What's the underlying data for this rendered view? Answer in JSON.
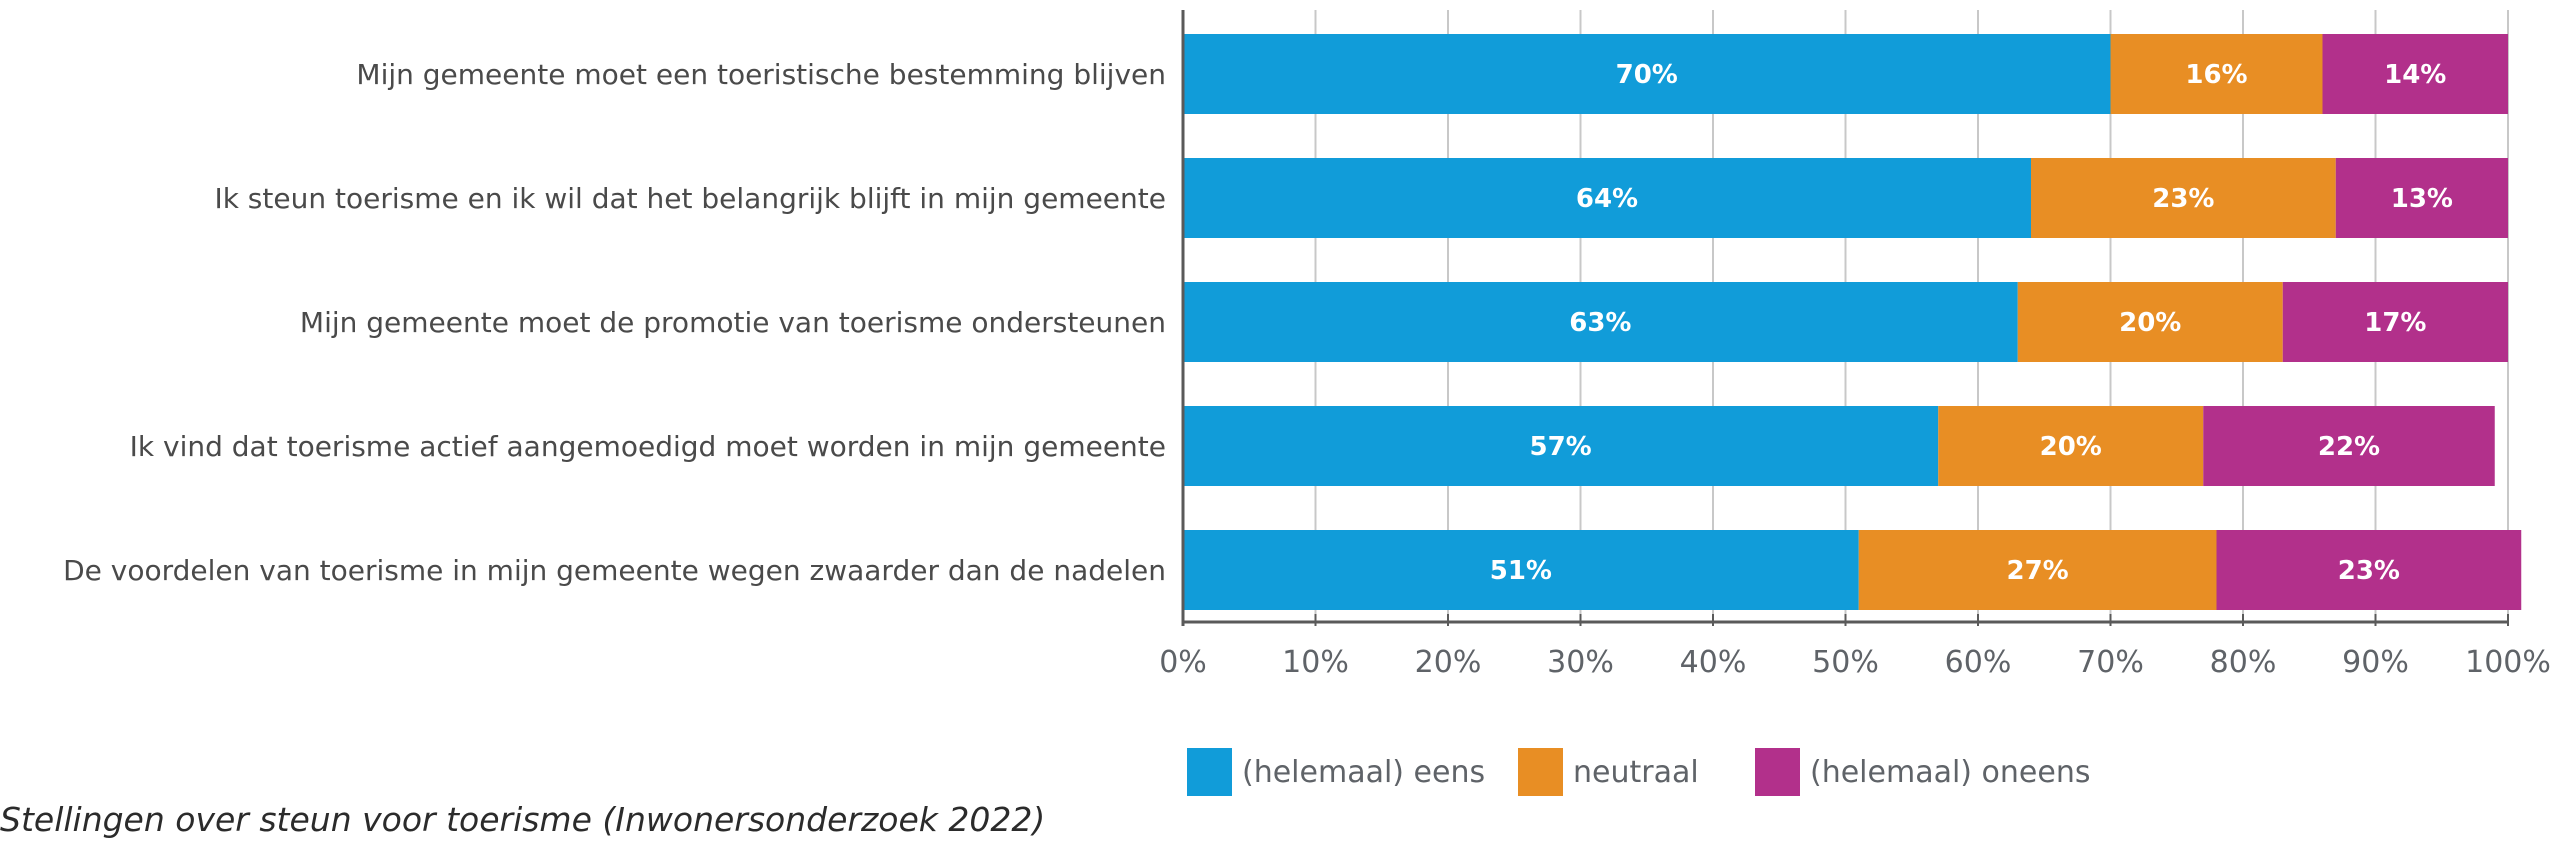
{
  "caption": "Stellingen over steun voor toerisme (Inwonersonderzoek 2022)",
  "chart_data": {
    "type": "bar",
    "orientation": "horizontal",
    "stacked": true,
    "categories": [
      "Mijn gemeente moet een toeristische bestemming blijven",
      "Ik steun toerisme en ik wil dat het belangrijk blijft in mijn gemeente",
      "Mijn gemeente moet de promotie van toerisme ondersteunen",
      "Ik vind dat toerisme actief aangemoedigd moet worden in mijn gemeente",
      "De voordelen van toerisme in mijn gemeente wegen zwaarder dan de nadelen"
    ],
    "series": [
      {
        "name": "(helemaal) eens",
        "color": "#119cd9",
        "values": [
          70,
          64,
          63,
          57,
          51
        ]
      },
      {
        "name": "neutraal",
        "color": "#e88e24",
        "values": [
          16,
          23,
          20,
          20,
          27
        ]
      },
      {
        "name": "(helemaal) oneens",
        "color": "#b2308b",
        "values": [
          14,
          13,
          17,
          22,
          23
        ]
      }
    ],
    "data_labels": [
      [
        "70%",
        "64%",
        "63%",
        "57%",
        "51%"
      ],
      [
        "16%",
        "23%",
        "20%",
        "20%",
        "27%"
      ],
      [
        "14%",
        "13%",
        "17%",
        "22%",
        "23%"
      ]
    ],
    "xlim": [
      0,
      100
    ],
    "xticks": [
      0,
      10,
      20,
      30,
      40,
      50,
      60,
      70,
      80,
      90,
      100
    ],
    "xtick_labels": [
      "0%",
      "10%",
      "20%",
      "30%",
      "40%",
      "50%",
      "60%",
      "70%",
      "80%",
      "90%",
      "100%"
    ],
    "grid": true,
    "legend": "bottom"
  }
}
